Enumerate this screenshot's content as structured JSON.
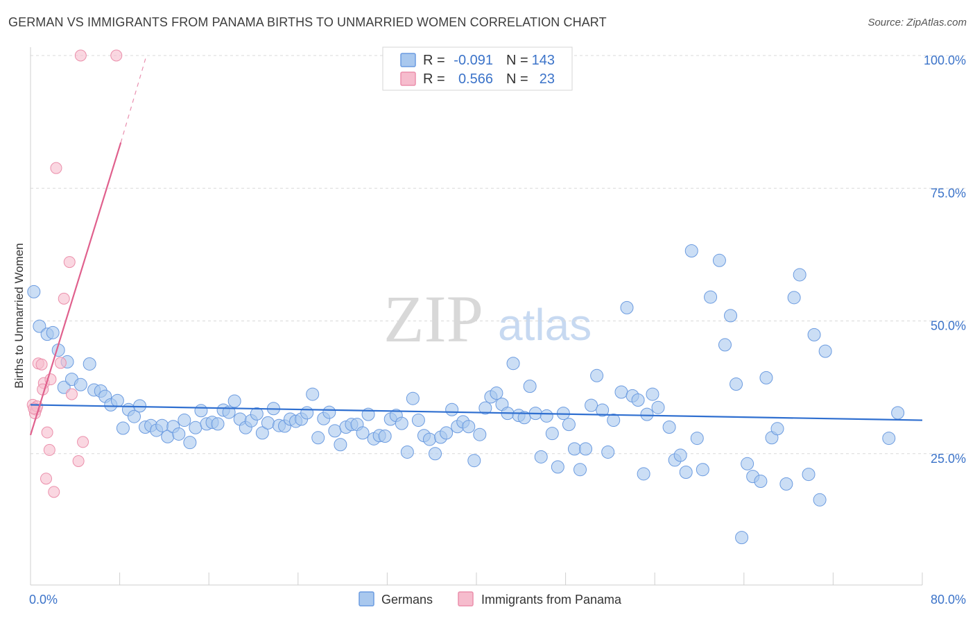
{
  "header": {
    "title": "GERMAN VS IMMIGRANTS FROM PANAMA BIRTHS TO UNMARRIED WOMEN CORRELATION CHART",
    "source": "Source: ZipAtlas.com"
  },
  "watermark": {
    "zip": "ZIP",
    "atlas": "atlas"
  },
  "legend": {
    "rows": [
      {
        "r_label": "R =",
        "r_value": "-0.091",
        "n_label": "N =",
        "n_value": "143"
      },
      {
        "r_label": "R =",
        "r_value": "0.566",
        "n_label": "N =",
        "n_value": "23"
      }
    ]
  },
  "colors": {
    "germans_fill": "#a9c8ee",
    "germans_stroke": "#6b9be0",
    "germans_line": "#2f6fd0",
    "panama_fill": "#f6bccd",
    "panama_stroke": "#eb8fab",
    "panama_line": "#e0608d",
    "grid": "#d9d9d9",
    "axis_text": "#3b73c9"
  },
  "chart_data": {
    "type": "scatter",
    "title": "GERMAN VS IMMIGRANTS FROM PANAMA BIRTHS TO UNMARRIED WOMEN CORRELATION CHART",
    "xlabel": "",
    "ylabel": "Births to Unmarried Women",
    "xlim": [
      0,
      80
    ],
    "ylim": [
      0,
      100
    ],
    "x_tick_labels": [
      "0.0%",
      "80.0%"
    ],
    "y_ticks": [
      25,
      50,
      75,
      100
    ],
    "y_tick_labels": [
      "25.0%",
      "50.0%",
      "75.0%",
      "100.0%"
    ],
    "legend_position": "bottom",
    "series": [
      {
        "name": "Germans",
        "r": -0.091,
        "n": 143,
        "trend": {
          "x0": 0,
          "y0": 34.2,
          "x1": 80,
          "y1": 31.3
        },
        "points": [
          [
            0.3,
            55.5
          ],
          [
            0.8,
            49
          ],
          [
            1.5,
            47.5
          ],
          [
            2,
            47.8
          ],
          [
            2.5,
            44.5
          ],
          [
            3,
            37.5
          ],
          [
            3.3,
            42.3
          ],
          [
            3.7,
            39
          ],
          [
            4.5,
            38
          ],
          [
            5.3,
            41.9
          ],
          [
            5.7,
            37
          ],
          [
            6.3,
            36.8
          ],
          [
            6.7,
            35.8
          ],
          [
            7.2,
            34.2
          ],
          [
            7.8,
            35
          ],
          [
            8.3,
            29.8
          ],
          [
            8.8,
            33.3
          ],
          [
            9.3,
            32
          ],
          [
            9.8,
            34
          ],
          [
            10.3,
            30
          ],
          [
            10.8,
            30.3
          ],
          [
            11.3,
            29.4
          ],
          [
            11.8,
            30.3
          ],
          [
            12.3,
            28.2
          ],
          [
            12.8,
            30.1
          ],
          [
            13.3,
            28.7
          ],
          [
            13.8,
            31.3
          ],
          [
            14.3,
            27.1
          ],
          [
            14.8,
            29.9
          ],
          [
            15.3,
            33.1
          ],
          [
            15.8,
            30.6
          ],
          [
            16.3,
            30.9
          ],
          [
            16.8,
            30.6
          ],
          [
            17.3,
            33.2
          ],
          [
            17.8,
            32.8
          ],
          [
            18.3,
            34.9
          ],
          [
            18.8,
            31.5
          ],
          [
            19.3,
            29.9
          ],
          [
            19.8,
            31.2
          ],
          [
            20.3,
            32.5
          ],
          [
            20.8,
            28.9
          ],
          [
            21.3,
            30.8
          ],
          [
            21.8,
            33.5
          ],
          [
            22.3,
            30.3
          ],
          [
            22.8,
            30.2
          ],
          [
            23.3,
            31.5
          ],
          [
            23.8,
            31.1
          ],
          [
            24.3,
            31.5
          ],
          [
            24.8,
            32.7
          ],
          [
            25.3,
            36.2
          ],
          [
            25.8,
            28
          ],
          [
            26.3,
            31.6
          ],
          [
            26.8,
            32.8
          ],
          [
            27.3,
            29.3
          ],
          [
            27.8,
            26.7
          ],
          [
            28.3,
            30
          ],
          [
            28.8,
            30.5
          ],
          [
            29.3,
            30.5
          ],
          [
            29.8,
            28.9
          ],
          [
            30.3,
            32.4
          ],
          [
            30.8,
            27.8
          ],
          [
            31.3,
            28.4
          ],
          [
            31.8,
            28.3
          ],
          [
            32.3,
            31.5
          ],
          [
            32.8,
            32.2
          ],
          [
            33.3,
            30.7
          ],
          [
            33.8,
            25.3
          ],
          [
            34.3,
            35.4
          ],
          [
            34.8,
            31.3
          ],
          [
            35.3,
            28.4
          ],
          [
            35.8,
            27.7
          ],
          [
            36.3,
            25
          ],
          [
            36.8,
            28.1
          ],
          [
            37.3,
            28.9
          ],
          [
            37.8,
            33.3
          ],
          [
            38.3,
            30.1
          ],
          [
            38.8,
            31
          ],
          [
            39.3,
            30.1
          ],
          [
            39.8,
            23.7
          ],
          [
            40.3,
            28.6
          ],
          [
            40.8,
            33.6
          ],
          [
            41.3,
            35.7
          ],
          [
            41.8,
            36.4
          ],
          [
            42.3,
            34.3
          ],
          [
            42.8,
            32.6
          ],
          [
            43.3,
            42
          ],
          [
            43.8,
            32.2
          ],
          [
            44.3,
            31.8
          ],
          [
            44.8,
            37.7
          ],
          [
            45.3,
            32.6
          ],
          [
            45.8,
            24.4
          ],
          [
            46.3,
            32.1
          ],
          [
            46.8,
            28.8
          ],
          [
            47.3,
            22.5
          ],
          [
            47.8,
            32.6
          ],
          [
            48.3,
            30.5
          ],
          [
            48.8,
            25.9
          ],
          [
            49.3,
            22
          ],
          [
            49.8,
            25.9
          ],
          [
            50.3,
            34.1
          ],
          [
            50.8,
            39.7
          ],
          [
            51.3,
            33.2
          ],
          [
            51.8,
            25.3
          ],
          [
            52.3,
            31.3
          ],
          [
            53,
            36.6
          ],
          [
            53.5,
            52.5
          ],
          [
            54,
            35.9
          ],
          [
            54.5,
            35.1
          ],
          [
            55,
            21.2
          ],
          [
            55.3,
            32.4
          ],
          [
            55.8,
            36.2
          ],
          [
            56.3,
            33.7
          ],
          [
            57.3,
            30
          ],
          [
            57.8,
            23.8
          ],
          [
            58.3,
            24.7
          ],
          [
            58.8,
            21.5
          ],
          [
            59.3,
            63.2
          ],
          [
            59.8,
            27.9
          ],
          [
            60.3,
            22
          ],
          [
            61,
            54.5
          ],
          [
            61.8,
            61.4
          ],
          [
            62.3,
            45.5
          ],
          [
            62.8,
            51
          ],
          [
            63.3,
            38.1
          ],
          [
            63.8,
            9.2
          ],
          [
            64.3,
            23.1
          ],
          [
            64.8,
            20.7
          ],
          [
            65.5,
            19.8
          ],
          [
            66,
            39.3
          ],
          [
            66.5,
            28
          ],
          [
            67,
            29.7
          ],
          [
            67.8,
            19.3
          ],
          [
            68.5,
            54.4
          ],
          [
            69,
            58.7
          ],
          [
            69.8,
            21.1
          ],
          [
            70.3,
            47.4
          ],
          [
            70.8,
            16.3
          ],
          [
            71.3,
            44.3
          ],
          [
            77,
            27.9
          ],
          [
            77.8,
            32.7
          ]
        ]
      },
      {
        "name": "Immigrants from Panama",
        "r": 0.566,
        "n": 23,
        "trend": {
          "x0": 0,
          "y0": 28.5,
          "x1": 8.1,
          "y1": 83.6,
          "dash_x1": 10.4,
          "dash_y1": 100
        },
        "points": [
          [
            4.5,
            100
          ],
          [
            7.7,
            100
          ],
          [
            2.3,
            78.8
          ],
          [
            3.5,
            61.1
          ],
          [
            3,
            54.2
          ],
          [
            0.7,
            42
          ],
          [
            1,
            41.8
          ],
          [
            2.7,
            42.1
          ],
          [
            1.2,
            38.3
          ],
          [
            1.1,
            37.1
          ],
          [
            1.8,
            39
          ],
          [
            3.7,
            36.2
          ],
          [
            0.2,
            34.2
          ],
          [
            0.5,
            33.3
          ],
          [
            0.4,
            32.6
          ],
          [
            0.6,
            33.9
          ],
          [
            1.5,
            29
          ],
          [
            1.7,
            25.7
          ],
          [
            4.7,
            27.2
          ],
          [
            4.3,
            23.6
          ],
          [
            1.4,
            20.3
          ],
          [
            2.1,
            17.8
          ],
          [
            0.3,
            33.5
          ]
        ]
      }
    ]
  },
  "bottom_legend": {
    "items": [
      {
        "label": "Germans"
      },
      {
        "label": "Immigrants from Panama"
      }
    ]
  }
}
